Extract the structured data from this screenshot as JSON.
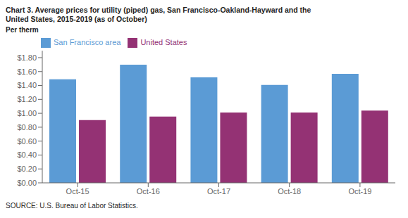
{
  "chart_data": {
    "type": "bar",
    "title": "Chart 3. Average prices for utility (piped) gas, San Francisco-Oakland-Hayward and the",
    "subtitle": "United States, 2015-2019  (as of October)",
    "ylabel": "Per therm",
    "source": "SOURCE: U.S. Bureau of Labor Statistics.",
    "categories": [
      "Oct-15",
      "Oct-16",
      "Oct-17",
      "Oct-18",
      "Oct-19"
    ],
    "series": [
      {
        "name": "San Francisco area",
        "color": "#5B9BD5",
        "values": [
          1.489,
          1.698,
          1.516,
          1.407,
          1.567
        ]
      },
      {
        "name": "United States",
        "color": "#943274",
        "values": [
          0.902,
          0.954,
          1.01,
          1.01,
          1.038
        ]
      }
    ],
    "ylim": [
      0,
      1.9
    ],
    "yticks": [
      {
        "value": 0.0,
        "label": "$0.00"
      },
      {
        "value": 0.2,
        "label": "$0.20"
      },
      {
        "value": 0.4,
        "label": "$0.40"
      },
      {
        "value": 0.6,
        "label": "$0.60"
      },
      {
        "value": 0.8,
        "label": "$0.80"
      },
      {
        "value": 1.0,
        "label": "$1.00"
      },
      {
        "value": 1.2,
        "label": "$1.20"
      },
      {
        "value": 1.4,
        "label": "$1.40"
      },
      {
        "value": 1.6,
        "label": "$1.60"
      },
      {
        "value": 1.8,
        "label": "$1.80"
      }
    ],
    "grid": false,
    "legend": "upper left"
  }
}
